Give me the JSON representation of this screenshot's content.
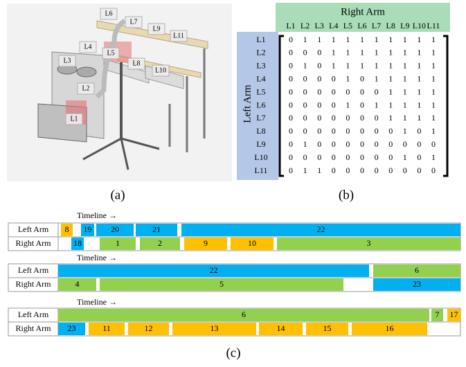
{
  "panel_a": {
    "caption": "(a)",
    "labels": [
      "L1",
      "L2",
      "L3",
      "L4",
      "L5",
      "L6",
      "L7",
      "L8",
      "L9",
      "L10",
      "L11"
    ]
  },
  "panel_b": {
    "caption": "(b)",
    "col_title": "Right Arm",
    "row_title": "Left Arm",
    "cols": [
      "L1",
      "L2",
      "L3",
      "L4",
      "L5",
      "L6",
      "L7",
      "L8",
      "L9",
      "L10",
      "L11"
    ],
    "rows": [
      "L1",
      "L2",
      "L3",
      "L4",
      "L5",
      "L6",
      "L7",
      "L8",
      "L9",
      "L10",
      "L11"
    ],
    "matrix": [
      [
        0,
        1,
        1,
        1,
        1,
        1,
        1,
        1,
        1,
        1,
        1
      ],
      [
        0,
        0,
        0,
        1,
        1,
        1,
        1,
        1,
        1,
        1,
        1
      ],
      [
        0,
        1,
        0,
        1,
        1,
        1,
        1,
        1,
        1,
        1,
        1
      ],
      [
        0,
        0,
        0,
        0,
        1,
        0,
        1,
        1,
        1,
        1,
        1
      ],
      [
        0,
        0,
        0,
        0,
        0,
        0,
        0,
        1,
        1,
        1,
        1
      ],
      [
        0,
        0,
        0,
        0,
        1,
        0,
        1,
        1,
        1,
        1,
        1
      ],
      [
        0,
        0,
        0,
        0,
        0,
        0,
        0,
        1,
        1,
        1,
        1
      ],
      [
        0,
        0,
        0,
        0,
        0,
        0,
        0,
        0,
        1,
        0,
        1
      ],
      [
        0,
        1,
        0,
        0,
        0,
        0,
        0,
        0,
        0,
        0,
        0
      ],
      [
        0,
        0,
        0,
        0,
        0,
        0,
        0,
        0,
        1,
        0,
        1
      ],
      [
        0,
        1,
        1,
        0,
        0,
        0,
        0,
        0,
        0,
        0,
        0
      ]
    ]
  },
  "panel_c": {
    "caption": "(c)",
    "timeline_label": "Timeline →",
    "row_labels": [
      "Left Arm",
      "Right Arm"
    ],
    "timelines": [
      {
        "rows": [
          [
            {
              "label": 8,
              "color": "#FFC000"
            },
            {
              "label": 19,
              "color": "#00B0F0"
            },
            {
              "label": 20,
              "color": "#00B0F0"
            },
            {
              "label": 21,
              "color": "#00B0F0"
            },
            {
              "label": 22,
              "color": "#00B0F0"
            }
          ],
          [
            {
              "label": 18,
              "color": "#00B0F0"
            },
            {
              "label": 1,
              "color": "#92D050"
            },
            {
              "label": 2,
              "color": "#92D050"
            },
            {
              "label": 9,
              "color": "#FFC000"
            },
            {
              "label": 10,
              "color": "#FFC000"
            },
            {
              "label": 3,
              "color": "#92D050"
            }
          ]
        ]
      },
      {
        "rows": [
          [
            {
              "label": 22,
              "color": "#00B0F0"
            },
            {
              "label": 6,
              "color": "#92D050"
            }
          ],
          [
            {
              "label": 4,
              "color": "#92D050"
            },
            {
              "label": 5,
              "color": "#92D050"
            },
            {
              "label": 23,
              "color": "#00B0F0"
            }
          ]
        ]
      },
      {
        "rows": [
          [
            {
              "label": 6,
              "color": "#92D050"
            },
            {
              "label": 7,
              "color": "#92D050"
            },
            {
              "label": 17,
              "color": "#FFC000"
            }
          ],
          [
            {
              "label": 23,
              "color": "#00B0F0"
            },
            {
              "label": 11,
              "color": "#FFC000"
            },
            {
              "label": 12,
              "color": "#FFC000"
            },
            {
              "label": 13,
              "color": "#FFC000"
            },
            {
              "label": 14,
              "color": "#FFC000"
            },
            {
              "label": 15,
              "color": "#FFC000"
            },
            {
              "label": 16,
              "color": "#FFC000"
            }
          ]
        ]
      }
    ]
  }
}
